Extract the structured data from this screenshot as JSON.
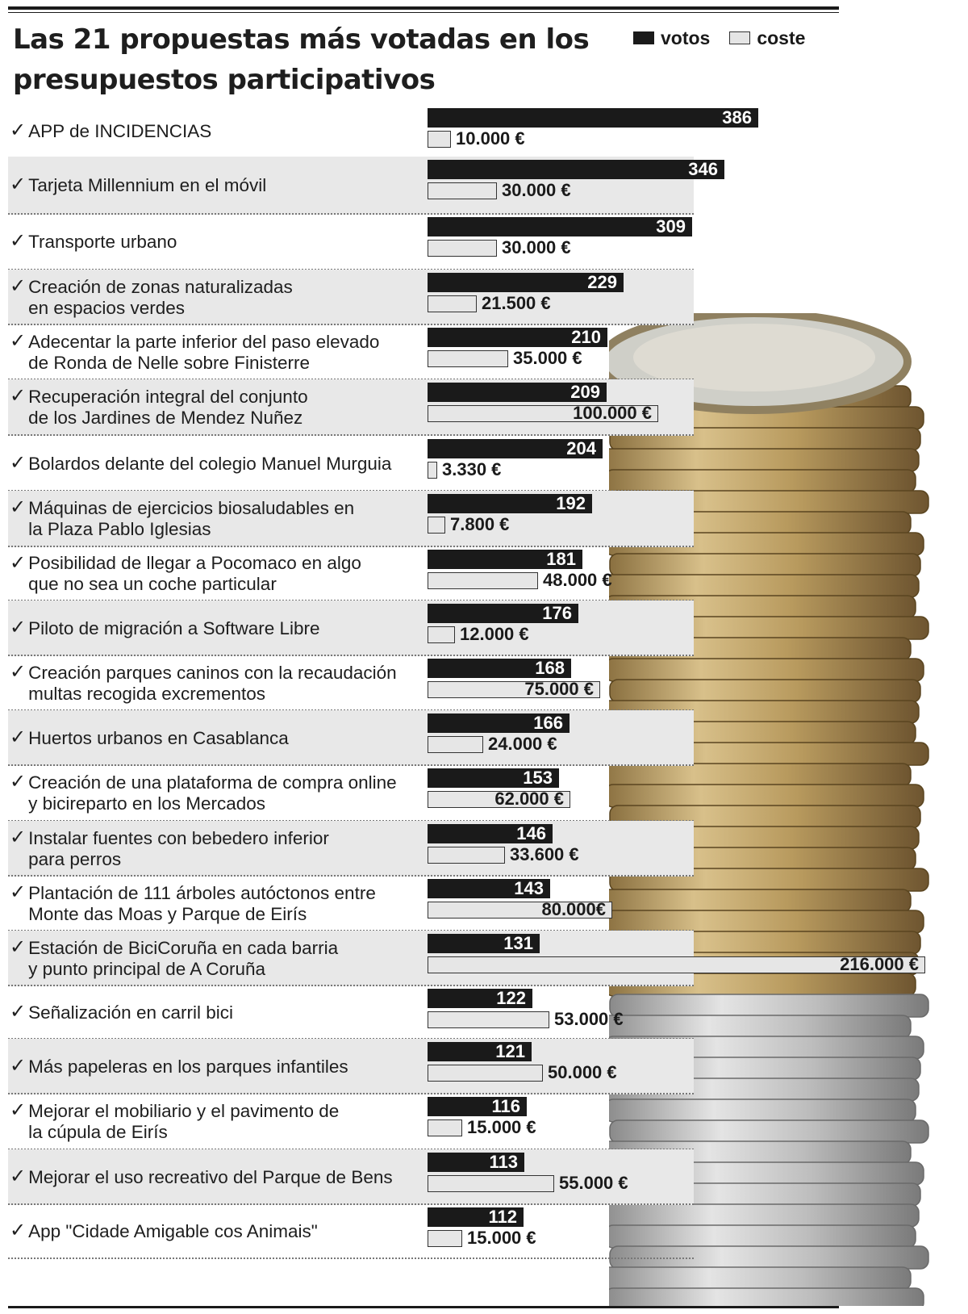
{
  "chart_data": {
    "type": "bar",
    "title": "Las 21 propuestas más votadas en los presupuestos participativos",
    "legend": [
      {
        "key": "votos",
        "label": "votos",
        "color": "#1a1a1a"
      },
      {
        "key": "coste",
        "label": "coste",
        "color": "#e6e6e6"
      }
    ],
    "legend_position": "top-right",
    "rows": [
      {
        "label": "APP de INCIDENCIAS",
        "votos": 386,
        "votos_label": "386",
        "coste": 10000,
        "coste_label": "10.000 €"
      },
      {
        "label": "Tarjeta Millennium en el móvil",
        "votos": 346,
        "votos_label": "346",
        "coste": 30000,
        "coste_label": "30.000 €"
      },
      {
        "label": "Transporte urbano",
        "votos": 309,
        "votos_label": "309",
        "coste": 30000,
        "coste_label": "30.000 €"
      },
      {
        "label": "Creación de zonas naturalizadas\nen espacios verdes",
        "votos": 229,
        "votos_label": "229",
        "coste": 21500,
        "coste_label": "21.500 €"
      },
      {
        "label": "Adecentar la parte inferior del paso elevado\nde Ronda de Nelle sobre Finisterre",
        "votos": 210,
        "votos_label": "210",
        "coste": 35000,
        "coste_label": "35.000 €"
      },
      {
        "label": "Recuperación integral del conjunto\nde los Jardines de Mendez Nuñez",
        "votos": 209,
        "votos_label": "209",
        "coste": 100000,
        "coste_label": "100.000 €"
      },
      {
        "label": "Bolardos delante del colegio Manuel Murguia",
        "votos": 204,
        "votos_label": "204",
        "coste": 3330,
        "coste_label": "3.330 €"
      },
      {
        "label": "Máquinas de ejercicios biosaludables en\nla Plaza Pablo Iglesias",
        "votos": 192,
        "votos_label": "192",
        "coste": 7800,
        "coste_label": "7.800 €"
      },
      {
        "label": "Posibilidad de llegar a Pocomaco en algo\nque no sea un coche particular",
        "votos": 181,
        "votos_label": "181",
        "coste": 48000,
        "coste_label": "48.000 €"
      },
      {
        "label": "Piloto de migración a Software Libre",
        "votos": 176,
        "votos_label": "176",
        "coste": 12000,
        "coste_label": "12.000 €"
      },
      {
        "label": "Creación parques caninos con la recaudación\nmultas recogida excrementos",
        "votos": 168,
        "votos_label": "168",
        "coste": 75000,
        "coste_label": "75.000 €"
      },
      {
        "label": "Huertos urbanos en Casablanca",
        "votos": 166,
        "votos_label": "166",
        "coste": 24000,
        "coste_label": "24.000 €"
      },
      {
        "label": "Creación de una plataforma de compra online\ny bicireparto en los Mercados",
        "votos": 153,
        "votos_label": "153",
        "coste": 62000,
        "coste_label": "62.000 €"
      },
      {
        "label": "Instalar fuentes con bebedero inferior\npara perros",
        "votos": 146,
        "votos_label": "146",
        "coste": 33600,
        "coste_label": "33.600 €"
      },
      {
        "label": "Plantación de 111 árboles autóctonos entre\nMonte das Moas y Parque de Eirís",
        "votos": 143,
        "votos_label": "143",
        "coste": 80000,
        "coste_label": "80.000€"
      },
      {
        "label": "Estación de BiciCoruña en cada barria\ny punto principal de A Coruña",
        "votos": 131,
        "votos_label": "131",
        "coste": 216000,
        "coste_label": "216.000 €"
      },
      {
        "label": "Señalización en carril bici",
        "votos": 122,
        "votos_label": "122",
        "coste": 53000,
        "coste_label": "53.000 €"
      },
      {
        "label": "Más papeleras en los parques infantiles",
        "votos": 121,
        "votos_label": "121",
        "coste": 50000,
        "coste_label": "50.000 €"
      },
      {
        "label": "Mejorar el mobiliario y el pavimento de\nla cúpula de Eirís",
        "votos": 116,
        "votos_label": "116",
        "coste": 15000,
        "coste_label": "15.000 €"
      },
      {
        "label": "Mejorar el uso recreativo del Parque de Bens",
        "votos": 113,
        "votos_label": "113",
        "coste": 55000,
        "coste_label": "55.000 €"
      },
      {
        "label": "App \"Cidade Amigable cos Animais\"",
        "votos": 112,
        "votos_label": "112",
        "coste": 15000,
        "coste_label": "15.000 €"
      }
    ]
  }
}
